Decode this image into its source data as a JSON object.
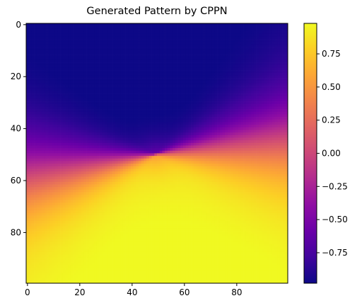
{
  "chart_data": {
    "type": "heatmap",
    "title": "Generated Pattern by CPPN",
    "xlabel": "",
    "ylabel": "",
    "grid": false,
    "width": 100,
    "height": 100,
    "x_ticks": [
      0,
      20,
      40,
      60,
      80
    ],
    "y_ticks": [
      0,
      20,
      40,
      60,
      80
    ],
    "x_tick_labels": [
      "0",
      "20",
      "40",
      "60",
      "80"
    ],
    "y_tick_labels": [
      "0",
      "20",
      "40",
      "60",
      "80"
    ],
    "colormap": "plasma",
    "value_range": [
      -0.98,
      0.98
    ],
    "center": [
      49,
      50
    ],
    "colorbar": {
      "location": "right",
      "ticks": [
        0.75,
        0.5,
        0.25,
        0.0,
        -0.25,
        -0.5,
        -0.75
      ],
      "tick_labels": [
        "0.75",
        "0.50",
        "0.25",
        "0.00",
        "−0.25",
        "−0.50",
        "−0.75"
      ]
    }
  }
}
